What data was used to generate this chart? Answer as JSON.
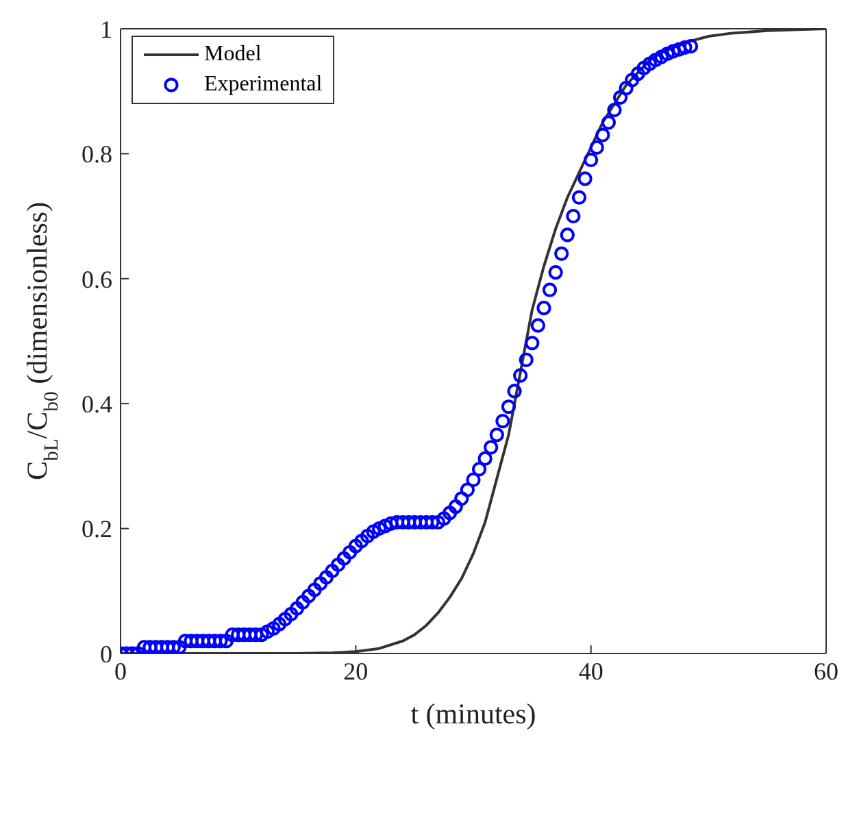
{
  "chart_data": {
    "type": "line",
    "xlabel": "t (minutes)",
    "ylabel": "C$_{bL}$/C$_{b0}$ (dimensionless)",
    "xlim": [
      0,
      60
    ],
    "ylim": [
      0,
      1
    ],
    "xticks": [
      0,
      20,
      40,
      60
    ],
    "yticks": [
      0,
      0.2,
      0.4,
      0.6,
      0.8,
      1
    ],
    "grid": false,
    "legend": "top left",
    "series": [
      {
        "name": "Model",
        "type": "line",
        "color": "#333333",
        "marker": "none",
        "line_style": "solid",
        "x": [
          0,
          5,
          10,
          15,
          18,
          20,
          22,
          24,
          25,
          26,
          27,
          28,
          29,
          30,
          31,
          32,
          33,
          34,
          35,
          36,
          37,
          38,
          39,
          40,
          41,
          42,
          43,
          44,
          45,
          46,
          48,
          50,
          52,
          55,
          58,
          60
        ],
        "values": [
          0,
          0,
          0,
          0,
          0.001,
          0.003,
          0.008,
          0.02,
          0.03,
          0.045,
          0.065,
          0.09,
          0.12,
          0.16,
          0.21,
          0.28,
          0.35,
          0.45,
          0.55,
          0.62,
          0.68,
          0.73,
          0.77,
          0.81,
          0.85,
          0.88,
          0.91,
          0.93,
          0.95,
          0.962,
          0.978,
          0.988,
          0.993,
          0.997,
          0.999,
          1.0
        ]
      },
      {
        "name": "Experimental",
        "type": "scatter",
        "color": "#0000ff",
        "marker": "circle",
        "x": [
          0,
          0.5,
          1,
          1.5,
          2,
          2.5,
          3,
          3.5,
          4,
          4.5,
          5,
          5.5,
          6,
          6.5,
          7,
          7.5,
          8,
          8.5,
          9,
          9.5,
          10,
          10.5,
          11,
          11.5,
          12,
          12.5,
          13,
          13.5,
          14,
          14.5,
          15,
          15.5,
          16,
          16.5,
          17,
          17.5,
          18,
          18.5,
          19,
          19.5,
          20,
          20.5,
          21,
          21.5,
          22,
          22.5,
          23,
          23.5,
          24,
          24.5,
          25,
          25.5,
          26,
          26.5,
          27,
          27.5,
          28,
          28.5,
          29,
          29.5,
          30,
          30.5,
          31,
          31.5,
          32,
          32.5,
          33,
          33.5,
          34,
          34.5,
          35,
          35.5,
          36,
          36.5,
          37,
          37.5,
          38,
          38.5,
          39,
          39.5,
          40,
          40.5,
          41,
          41.5,
          42,
          42.5,
          43,
          43.5,
          44,
          44.5,
          45,
          45.5,
          46,
          46.5,
          47,
          47.5,
          48,
          48.5
        ],
        "values": [
          0,
          0,
          0,
          0,
          0.01,
          0.01,
          0.01,
          0.01,
          0.01,
          0.01,
          0.01,
          0.02,
          0.02,
          0.02,
          0.02,
          0.02,
          0.02,
          0.02,
          0.02,
          0.03,
          0.03,
          0.03,
          0.03,
          0.03,
          0.03,
          0.035,
          0.04,
          0.047,
          0.055,
          0.063,
          0.072,
          0.082,
          0.092,
          0.102,
          0.112,
          0.122,
          0.132,
          0.142,
          0.152,
          0.162,
          0.172,
          0.18,
          0.188,
          0.195,
          0.2,
          0.204,
          0.208,
          0.21,
          0.21,
          0.21,
          0.21,
          0.21,
          0.21,
          0.21,
          0.21,
          0.216,
          0.225,
          0.235,
          0.248,
          0.262,
          0.278,
          0.295,
          0.312,
          0.33,
          0.35,
          0.372,
          0.395,
          0.42,
          0.445,
          0.47,
          0.497,
          0.525,
          0.553,
          0.582,
          0.61,
          0.64,
          0.67,
          0.7,
          0.73,
          0.76,
          0.79,
          0.81,
          0.83,
          0.85,
          0.87,
          0.89,
          0.905,
          0.918,
          0.928,
          0.937,
          0.944,
          0.95,
          0.955,
          0.96,
          0.964,
          0.967,
          0.97,
          0.972
        ]
      }
    ]
  }
}
